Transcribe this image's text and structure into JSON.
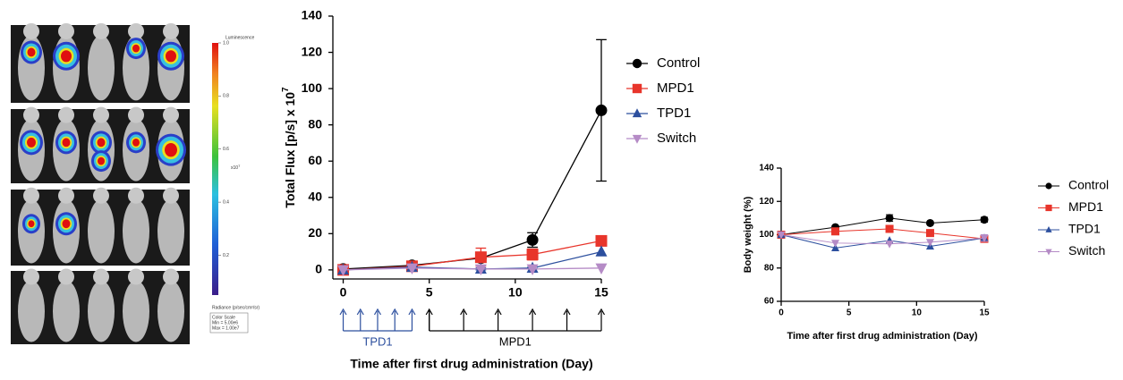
{
  "image_panel": {
    "colorbar": {
      "title": "Luminescence",
      "range": [
        0.05,
        1
      ],
      "ticks": [
        {
          "value": 1,
          "label": "1.0"
        },
        {
          "value": 0.8,
          "label": "0.8"
        },
        {
          "value": 0.6,
          "label": "0.6"
        },
        {
          "value": 0.4,
          "label": "0.4"
        },
        {
          "value": 0.2,
          "label": "0.2"
        }
      ],
      "scale_label": "x10",
      "scale_exponent": "7",
      "unit_label": "Radiance (p/sec/cm²/sr)",
      "color_scale": "Color Scale",
      "min_label": "Min = 5.00e6",
      "max_label": "Max = 1.00e7"
    }
  },
  "chart_data": [
    {
      "type": "line",
      "x_label": "Time after first drug administration (Day)",
      "y_label": "Total Flux [p/s] x 10",
      "y_label_exponent": "7",
      "x": [
        0,
        4,
        8,
        11,
        15
      ],
      "xlim": [
        -0.6,
        15
      ],
      "xticks": [
        0,
        5,
        10,
        15
      ],
      "ylim": [
        -5,
        140
      ],
      "yticks": [
        0,
        20,
        40,
        60,
        80,
        100,
        120,
        140
      ],
      "legend": "right",
      "series": [
        {
          "name": "Control",
          "color": "#000000",
          "marker": "circle",
          "values": [
            0.5,
            2.5,
            6.5,
            16.5,
            88
          ],
          "errors": [
            0.5,
            1,
            2,
            4,
            39
          ]
        },
        {
          "name": "MPD1",
          "color": "#e8352b",
          "marker": "square",
          "values": [
            0,
            2,
            7,
            8.5,
            16
          ],
          "errors": [
            0.3,
            0.5,
            5,
            3,
            0
          ]
        },
        {
          "name": "TPD1",
          "color": "#2c4f9e",
          "marker": "triangle-up",
          "values": [
            0,
            1.5,
            0.5,
            1,
            10
          ],
          "errors": [
            0,
            0.5,
            0.5,
            0.5,
            0
          ]
        },
        {
          "name": "Switch",
          "color": "#b58bc6",
          "marker": "triangle-down",
          "values": [
            0,
            1,
            0.5,
            0.5,
            1
          ],
          "errors": [
            0,
            0,
            0,
            0,
            0
          ]
        }
      ],
      "dosing": [
        {
          "label": "TPD1",
          "color": "#2c4f9e",
          "days": [
            0,
            1,
            2,
            3,
            4
          ]
        },
        {
          "label": "MPD1",
          "color": "#000000",
          "days": [
            5,
            7,
            9,
            11,
            13,
            15
          ]
        }
      ]
    },
    {
      "type": "line",
      "x_label": "Time after first drug administration (Day)",
      "y_label": "Body weight (%)",
      "x": [
        0,
        4,
        8,
        11,
        15
      ],
      "xlim": [
        0,
        15
      ],
      "xticks": [
        0,
        5,
        10,
        15
      ],
      "ylim": [
        60,
        140
      ],
      "yticks": [
        60,
        80,
        100,
        120,
        140
      ],
      "legend": "right",
      "series": [
        {
          "name": "Control",
          "color": "#000000",
          "marker": "circle",
          "values": [
            100,
            104.5,
            110,
            107,
            109
          ],
          "errors": [
            2,
            1,
            2,
            1,
            1.5
          ]
        },
        {
          "name": "MPD1",
          "color": "#e8352b",
          "marker": "square",
          "values": [
            100,
            102,
            103.5,
            101,
            97.5
          ],
          "errors": [
            1,
            0,
            0,
            0,
            1
          ]
        },
        {
          "name": "TPD1",
          "color": "#2c4f9e",
          "marker": "triangle-up",
          "values": [
            100,
            92,
            96.5,
            93,
            98
          ],
          "errors": [
            0,
            0,
            0,
            0,
            0
          ]
        },
        {
          "name": "Switch",
          "color": "#b58bc6",
          "marker": "triangle-down",
          "values": [
            100,
            95,
            94.5,
            95.5,
            98
          ],
          "errors": [
            0,
            0,
            0,
            0,
            2
          ]
        }
      ]
    }
  ]
}
